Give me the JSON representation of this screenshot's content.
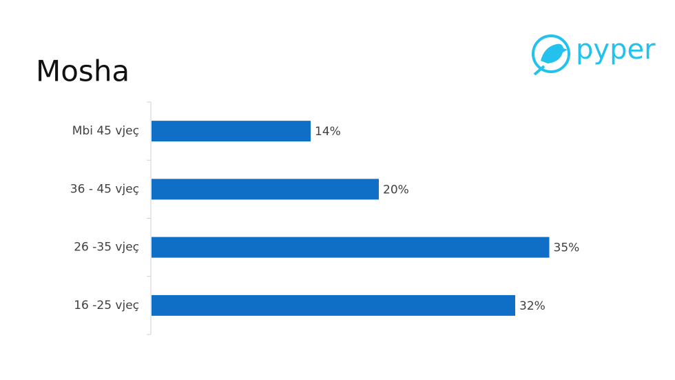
{
  "chart_data": {
    "type": "bar",
    "orientation": "horizontal",
    "title": "Mosha",
    "logo_text": "pyper",
    "categories": [
      "Mbi 45 vjeç",
      "36 - 45 vjeç",
      "26 -35 vjeç",
      "16 -25 vjeç"
    ],
    "values": [
      14,
      20,
      35,
      32
    ],
    "value_labels": [
      "14%",
      "20%",
      "35%",
      "32%"
    ],
    "color": "#0f6fc6"
  }
}
